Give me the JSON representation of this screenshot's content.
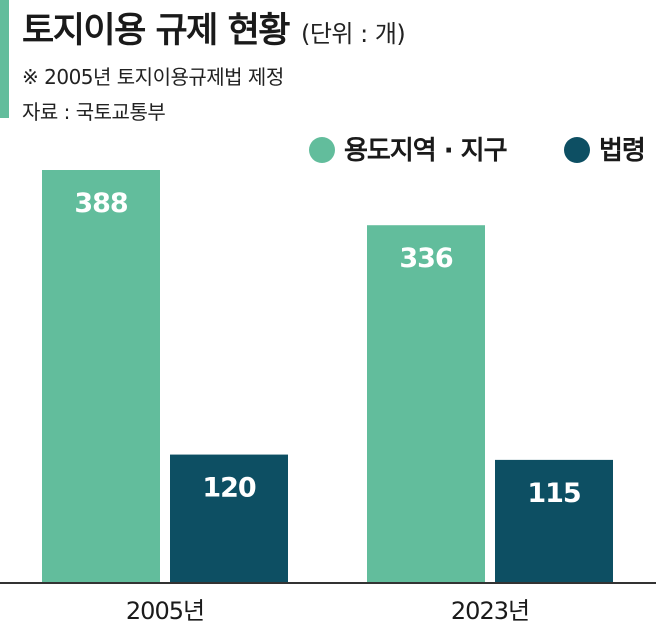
{
  "header": {
    "title": "토지이용 규제 현황",
    "unit": "(단위 : 개)",
    "note": "※ 2005년 토지이용규제법 제정",
    "source": "자료 : 국토교통부"
  },
  "colors": {
    "accent": "#62bd9c",
    "series_1": "#62bd9c",
    "series_2": "#0d4f63",
    "axis": "#333333",
    "label_inside": "#ffffff"
  },
  "chart_data": {
    "type": "bar",
    "categories": [
      "2005년",
      "2023년"
    ],
    "series": [
      {
        "name": "용도지역 · 지구",
        "values": [
          388,
          336
        ]
      },
      {
        "name": "법령",
        "values": [
          120,
          115
        ]
      }
    ],
    "legend_position": "top-right",
    "grid": false,
    "data_labels": true,
    "ylim": [
      0,
      388
    ]
  }
}
